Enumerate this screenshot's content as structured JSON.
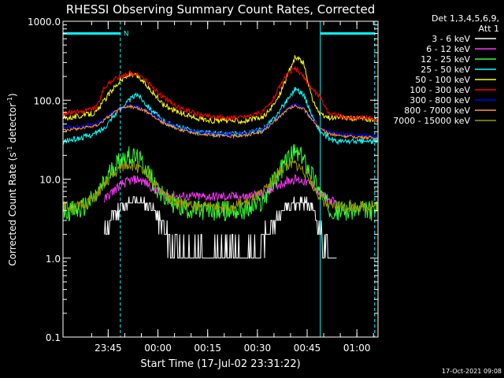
{
  "chart_data": {
    "type": "line",
    "title": "RHESSI Observing Summary Count Rates, Corrected",
    "xlabel": "Start Time (17-Jul-02 23:31:22)",
    "ylabel_main": "Corrected Count Rate (s",
    "ylabel_sup1": "-1",
    "ylabel_mid": " detector",
    "ylabel_sup2": "-1",
    "ylabel_end": ")",
    "yscale": "log",
    "ylim": [
      0.1,
      1000
    ],
    "xlim_minutes": [
      0,
      95
    ],
    "y_ticks": [
      "0.1",
      "1.0",
      "10.0",
      "100.0",
      "1000.0"
    ],
    "x_ticks": [
      {
        "label": "23:45",
        "minute": 13.63
      },
      {
        "label": "00:00",
        "minute": 28.63
      },
      {
        "label": "00:15",
        "minute": 43.63
      },
      {
        "label": "00:30",
        "minute": 58.63
      },
      {
        "label": "00:45",
        "minute": 73.63
      },
      {
        "label": "01:00",
        "minute": 88.63
      }
    ],
    "legend_title": "Det 1,3,4,5,6,9,",
    "legend_subtitle": "Att 1",
    "legend_position": "top-right",
    "annotation_N": "N",
    "footer_date": "17-Oct-2021 09:08",
    "markers": {
      "solid_minutes": [
        0,
        77.6
      ],
      "dashed_minutes": [
        17.3,
        94.0
      ],
      "bar_segments": [
        [
          0,
          17.3
        ],
        [
          77.6,
          94.0
        ]
      ],
      "bar_value": 700
    },
    "x_minutes": [
      0,
      5,
      10,
      12.5,
      15,
      17.5,
      20,
      22.5,
      25,
      27.5,
      30,
      35,
      40,
      45,
      50,
      55,
      60,
      62.5,
      65,
      67.5,
      70,
      72.5,
      75,
      77.5,
      80,
      82.5,
      85,
      90,
      95
    ],
    "series": [
      {
        "name": "3 - 6 keV",
        "color": "#ffffff",
        "values": [
          null,
          null,
          null,
          2,
          3.5,
          4.5,
          5,
          5.2,
          5,
          4,
          2.5,
          1,
          1,
          1,
          1,
          1,
          1.5,
          2.5,
          3.5,
          4.5,
          5,
          5.2,
          4.5,
          2.5,
          1,
          1,
          null,
          null,
          null
        ]
      },
      {
        "name": "6 - 12 keV",
        "color": "#ff33ff",
        "values": [
          null,
          null,
          null,
          5.5,
          7,
          8.5,
          9.5,
          10,
          9,
          7.5,
          6.5,
          6,
          6,
          6,
          6,
          6,
          6.5,
          7.5,
          8.5,
          9.5,
          10,
          9.5,
          8.5,
          6.5,
          5.5,
          5,
          null,
          null,
          null
        ]
      },
      {
        "name": "12 - 25 keV",
        "color": "#33ff33",
        "values": [
          4,
          4,
          6,
          9,
          14,
          18,
          20,
          18,
          14,
          9,
          6,
          4.5,
          4,
          4,
          4,
          4,
          5,
          8,
          12,
          17,
          22,
          18,
          12,
          7,
          4.5,
          4,
          4,
          4,
          4
        ]
      },
      {
        "name": "25 - 50 keV",
        "color": "#00ffff",
        "values": [
          30,
          33,
          38,
          45,
          62,
          80,
          100,
          120,
          90,
          70,
          55,
          45,
          40,
          38,
          37,
          38,
          42,
          52,
          70,
          100,
          140,
          120,
          65,
          40,
          33,
          30,
          30,
          30,
          30
        ]
      },
      {
        "name": "50 - 100 keV",
        "color": "#ffff00",
        "values": [
          60,
          63,
          70,
          100,
          140,
          180,
          210,
          200,
          160,
          120,
          90,
          70,
          60,
          55,
          55,
          55,
          60,
          75,
          110,
          200,
          350,
          300,
          110,
          65,
          60,
          60,
          60,
          58,
          55
        ]
      },
      {
        "name": "100 - 300 keV",
        "color": "#ff0000",
        "values": [
          68,
          72,
          80,
          145,
          180,
          200,
          220,
          210,
          180,
          140,
          110,
          80,
          68,
          62,
          60,
          62,
          70,
          90,
          140,
          210,
          250,
          200,
          140,
          110,
          70,
          65,
          60,
          60,
          58
        ]
      },
      {
        "name": "300 - 800 keV",
        "color": "#0000ff",
        "values": [
          45,
          47,
          50,
          58,
          70,
          80,
          85,
          82,
          75,
          65,
          55,
          45,
          40,
          38,
          37,
          38,
          42,
          50,
          62,
          78,
          88,
          80,
          60,
          45,
          40,
          38,
          37,
          36,
          35
        ]
      },
      {
        "name": "800 - 7000 keV",
        "color": "#ff9933",
        "values": [
          42,
          44,
          48,
          56,
          68,
          78,
          83,
          80,
          72,
          62,
          52,
          43,
          38,
          36,
          35,
          36,
          40,
          48,
          60,
          75,
          85,
          78,
          58,
          43,
          38,
          36,
          35,
          34,
          33
        ]
      },
      {
        "name": "7000 - 15000 keV",
        "color": "#999900",
        "values": [
          4.5,
          4.5,
          6,
          8.5,
          11,
          14,
          15.5,
          14,
          11.5,
          9,
          6.5,
          5,
          4.5,
          4.5,
          4.5,
          5,
          6.5,
          9,
          12,
          15,
          15.5,
          13,
          9,
          6,
          4.5,
          4.5,
          4.5,
          4.5,
          4.5
        ]
      }
    ]
  }
}
